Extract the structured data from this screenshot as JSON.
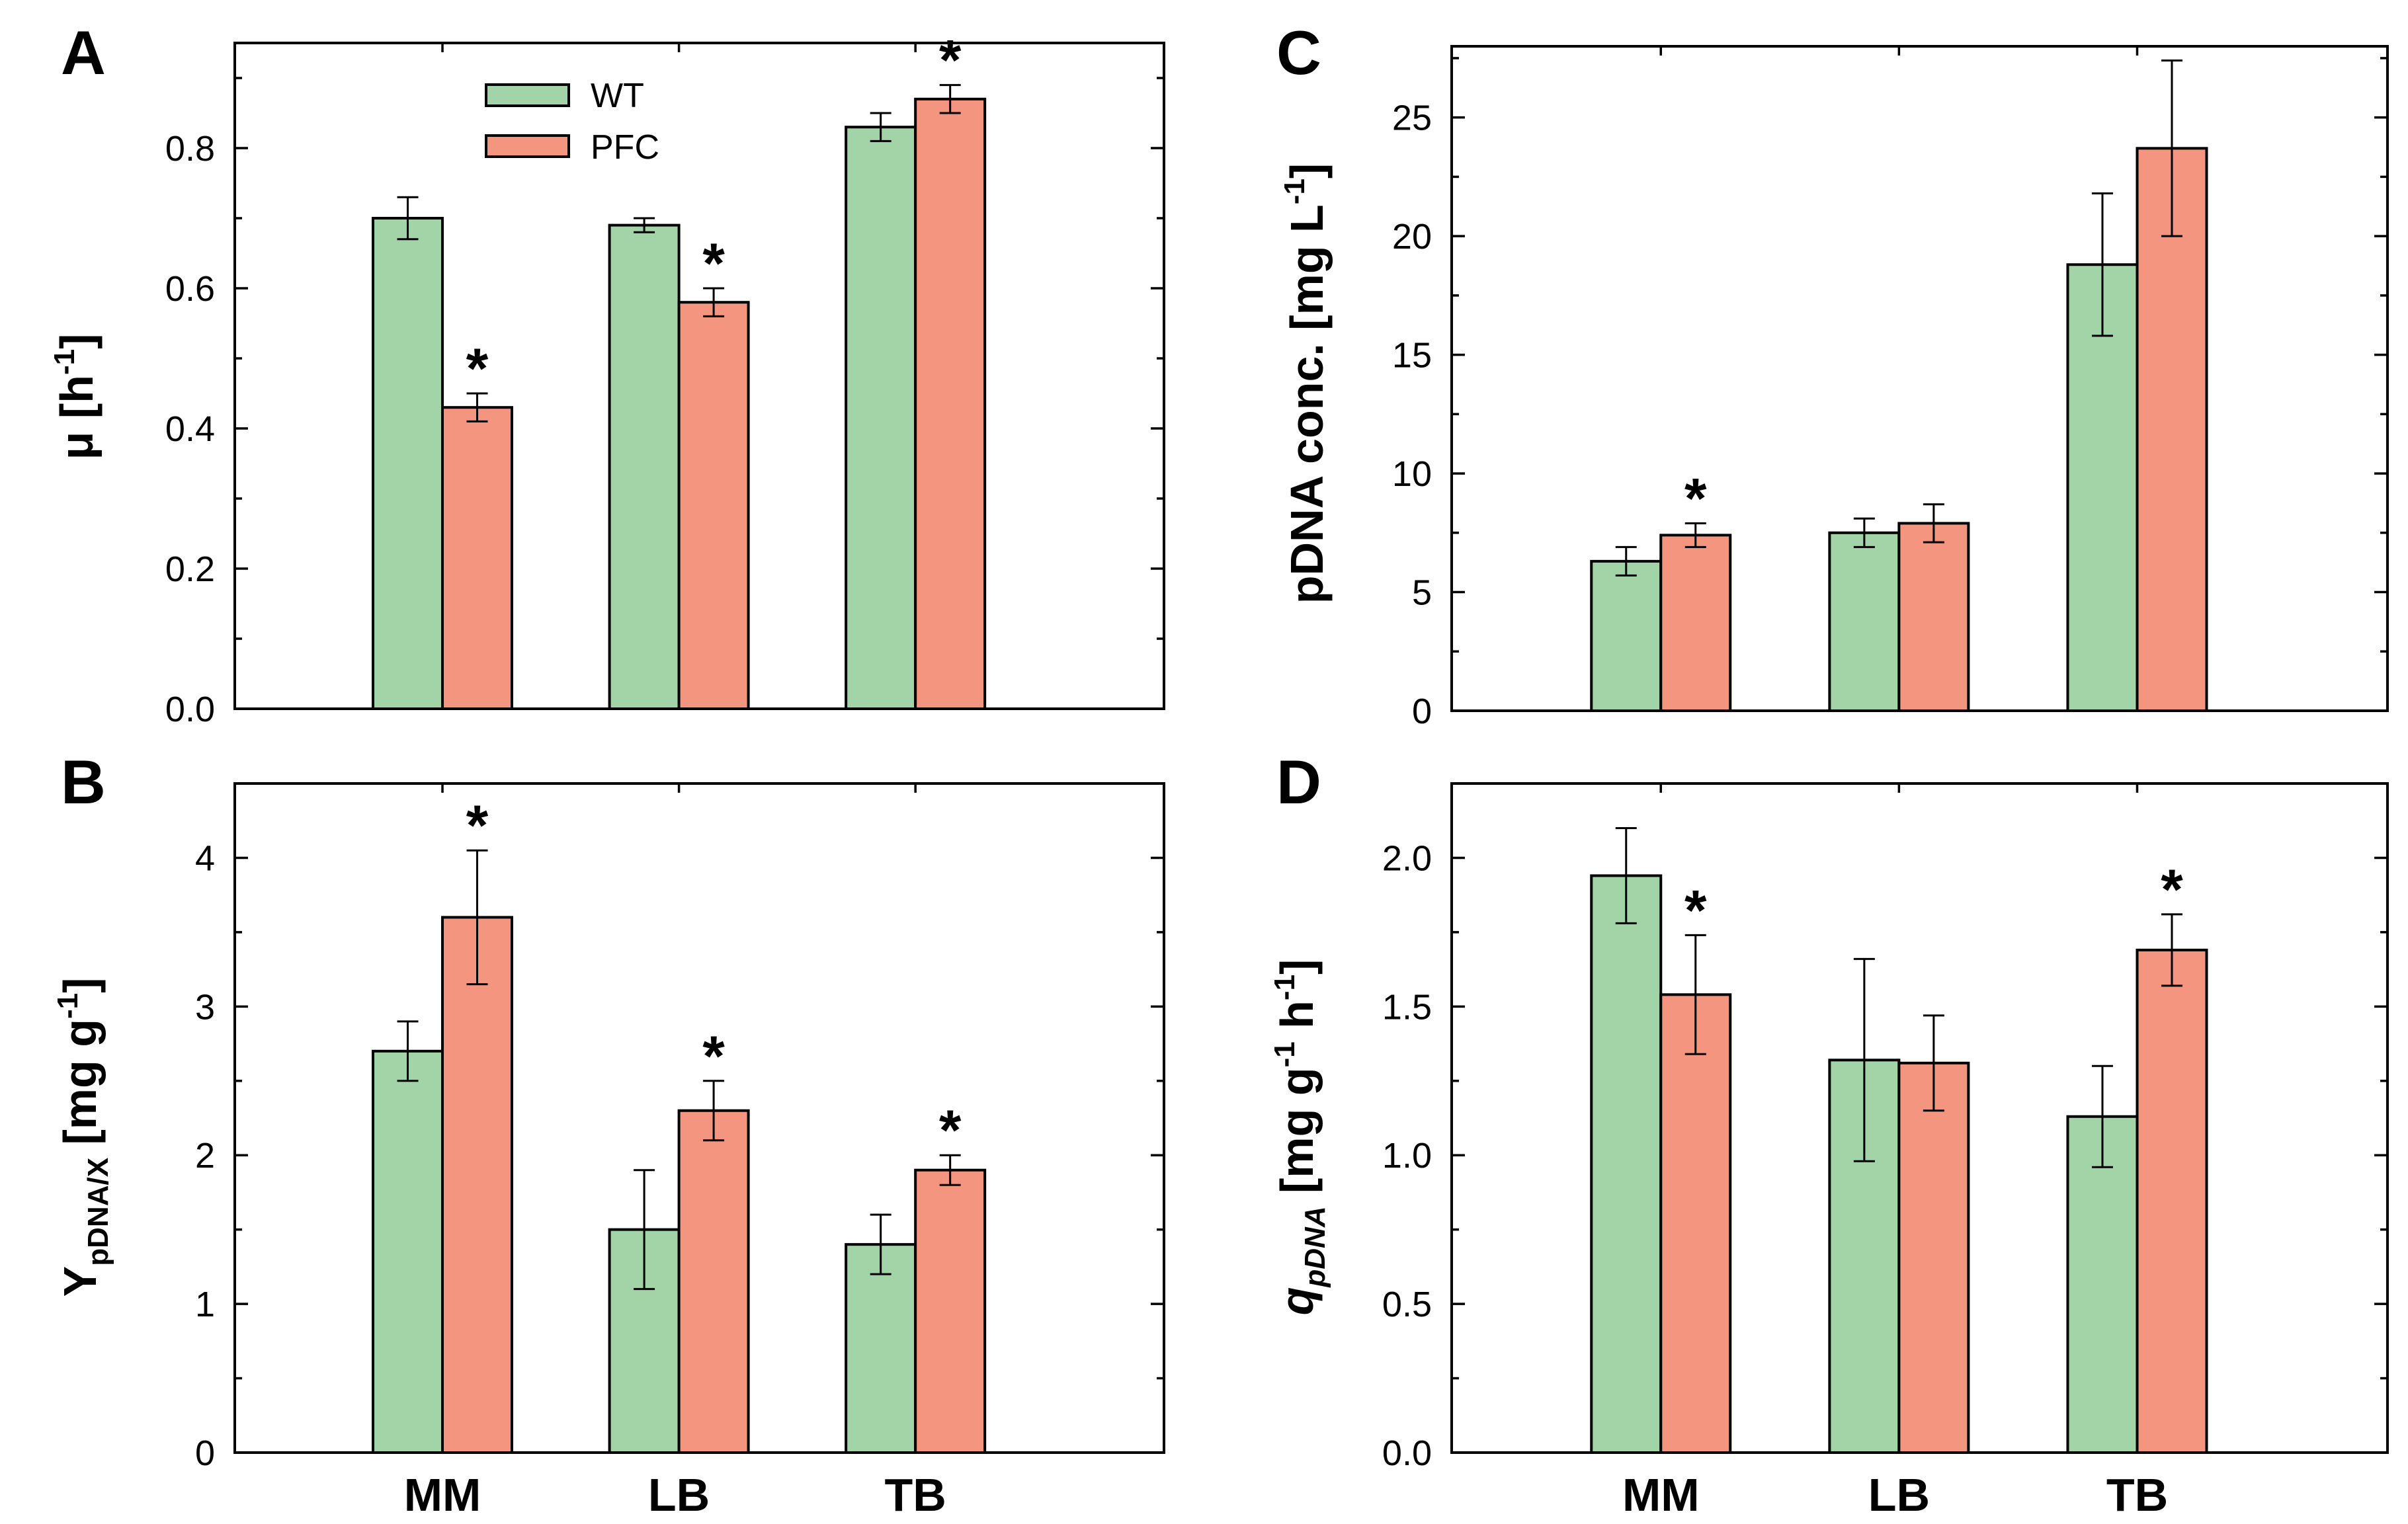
{
  "colors": {
    "wt": "#a3d4a8",
    "pfc": "#f49580"
  },
  "legend": {
    "wt": "WT",
    "pfc": "PFC"
  },
  "chart_data": [
    {
      "panel": "A",
      "type": "bar",
      "categories": [
        "MM",
        "LB",
        "TB"
      ],
      "series": [
        {
          "name": "WT",
          "values": [
            0.7,
            0.69,
            0.83
          ],
          "errors": [
            0.03,
            0.01,
            0.02
          ],
          "significant": [
            false,
            false,
            false
          ]
        },
        {
          "name": "PFC",
          "values": [
            0.43,
            0.58,
            0.87
          ],
          "errors": [
            0.02,
            0.02,
            0.02
          ],
          "significant": [
            true,
            true,
            true
          ]
        }
      ],
      "ylabel": {
        "main": "μ [h",
        "sup": "-1",
        "end": "]"
      },
      "ylim": [
        0,
        0.95
      ],
      "yticks": [
        "0.0",
        "0.2",
        "0.4",
        "0.6",
        "0.8"
      ],
      "yticks_values": [
        0,
        0.2,
        0.4,
        0.6,
        0.8
      ],
      "show_category_labels": false,
      "legend": "top-left"
    },
    {
      "panel": "B",
      "type": "bar",
      "categories": [
        "MM",
        "LB",
        "TB"
      ],
      "series": [
        {
          "name": "WT",
          "values": [
            2.7,
            1.5,
            1.4
          ],
          "errors": [
            0.2,
            0.4,
            0.2
          ],
          "significant": [
            false,
            false,
            false
          ]
        },
        {
          "name": "PFC",
          "values": [
            3.6,
            2.3,
            1.9
          ],
          "errors": [
            0.45,
            0.2,
            0.1
          ],
          "significant": [
            true,
            true,
            true
          ]
        }
      ],
      "ylabel": {
        "main": "Y",
        "sub": "pDNA/X",
        "end": " [mg g",
        "sup": "-1",
        "end2": "]"
      },
      "ylim": [
        0,
        4.5
      ],
      "yticks": [
        "0",
        "1",
        "2",
        "3",
        "4"
      ],
      "yticks_values": [
        0,
        1,
        2,
        3,
        4
      ],
      "show_category_labels": true
    },
    {
      "panel": "C",
      "type": "bar",
      "categories": [
        "MM",
        "LB",
        "TB"
      ],
      "series": [
        {
          "name": "WT",
          "values": [
            6.3,
            7.5,
            18.8
          ],
          "errors": [
            0.6,
            0.6,
            3.0
          ],
          "significant": [
            false,
            false,
            false
          ]
        },
        {
          "name": "PFC",
          "values": [
            7.4,
            7.9,
            23.7
          ],
          "errors": [
            0.5,
            0.8,
            3.7
          ],
          "significant": [
            true,
            false,
            false
          ]
        }
      ],
      "ylabel": {
        "main": "pDNA conc. [mg L",
        "sup": "-1",
        "end": "]"
      },
      "ylim": [
        0,
        28
      ],
      "yticks": [
        "0",
        "5",
        "10",
        "15",
        "20",
        "25"
      ],
      "yticks_values": [
        0,
        5,
        10,
        15,
        20,
        25
      ],
      "show_category_labels": false
    },
    {
      "panel": "D",
      "type": "bar",
      "categories": [
        "MM",
        "LB",
        "TB"
      ],
      "series": [
        {
          "name": "WT",
          "values": [
            1.94,
            1.32,
            1.13
          ],
          "errors": [
            0.16,
            0.34,
            0.17
          ],
          "significant": [
            false,
            false,
            false
          ]
        },
        {
          "name": "PFC",
          "values": [
            1.54,
            1.31,
            1.69
          ],
          "errors": [
            0.2,
            0.16,
            0.12
          ],
          "significant": [
            true,
            false,
            true
          ]
        }
      ],
      "ylabel": {
        "main": "q",
        "sub": "pDNA",
        "end": " [mg g",
        "sup": "-1",
        "end2": " h",
        "sup2": "-1",
        "end3": "]"
      },
      "ylim": [
        0,
        2.25
      ],
      "yticks": [
        "0.0",
        "0.5",
        "1.0",
        "1.5",
        "2.0"
      ],
      "yticks_values": [
        0,
        0.5,
        1.0,
        1.5,
        2.0
      ],
      "show_category_labels": true
    }
  ],
  "significance_marker": "*"
}
